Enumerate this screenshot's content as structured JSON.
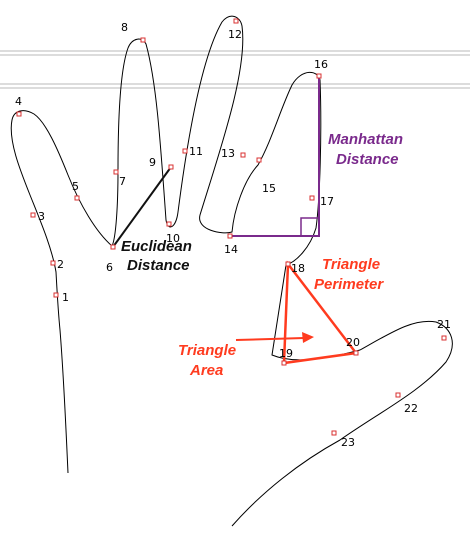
{
  "annotations": {
    "euclidean": {
      "line1": "Euclidean",
      "line2": "Distance",
      "color": "#111111"
    },
    "manhattan": {
      "line1": "Manhattan",
      "line2": "Distance",
      "color": "#7a2a8c"
    },
    "triangle_perimeter": {
      "line1": "Triangle",
      "line2": "Perimeter",
      "color": "#ff3b1f"
    },
    "triangle_area": {
      "line1": "Triangle",
      "line2": "Area",
      "color": "#ff3b1f"
    }
  },
  "landmarks": [
    {
      "id": "1",
      "label": "1"
    },
    {
      "id": "2",
      "label": "2"
    },
    {
      "id": "3",
      "label": "3"
    },
    {
      "id": "4",
      "label": "4"
    },
    {
      "id": "5",
      "label": "5"
    },
    {
      "id": "6",
      "label": "6"
    },
    {
      "id": "7",
      "label": "7"
    },
    {
      "id": "8",
      "label": "8"
    },
    {
      "id": "9",
      "label": "9"
    },
    {
      "id": "10",
      "label": "10"
    },
    {
      "id": "11",
      "label": "11"
    },
    {
      "id": "12",
      "label": "12"
    },
    {
      "id": "13",
      "label": "13"
    },
    {
      "id": "14",
      "label": "14"
    },
    {
      "id": "15",
      "label": "15"
    },
    {
      "id": "16",
      "label": "16"
    },
    {
      "id": "17",
      "label": "17"
    },
    {
      "id": "18",
      "label": "18"
    },
    {
      "id": "19",
      "label": "19"
    },
    {
      "id": "20",
      "label": "20"
    },
    {
      "id": "21",
      "label": "21"
    },
    {
      "id": "22",
      "label": "22"
    },
    {
      "id": "23",
      "label": "23"
    }
  ],
  "colors": {
    "outline": "#000000",
    "landmark_marker": "#d93030",
    "euclidean": "#111111",
    "manhattan": "#7a2a8c",
    "triangle": "#ff3b1f",
    "guide_lines": "#b8b8b8"
  }
}
